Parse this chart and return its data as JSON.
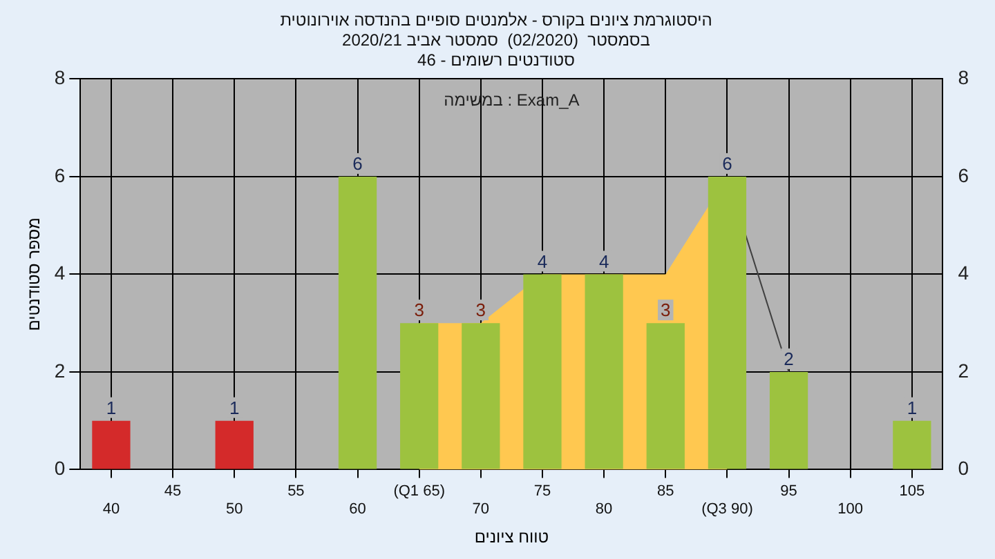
{
  "chart_data": {
    "type": "bar",
    "title": "היסטוגרמת ציונים בקורס - אלמנטים סופיים בהנדסה אוירונוטית",
    "subtitle": "בסמסטר  (02/2020)  סמסטר אביב 2020/21\nסטודנטים רשומים - 46",
    "xlabel": "טווח ציונים",
    "ylabel": "מספר סטודנטים",
    "annotations": [
      "במשימה : Exam_A"
    ],
    "categories": [
      "40",
      "45",
      "50",
      "55",
      "60",
      "(Q1 65)",
      "70",
      "75",
      "80",
      "85",
      "(Q3 90)",
      "95",
      "100",
      "105"
    ],
    "series": [
      {
        "type": "area",
        "color": "#ffc850",
        "values": [
          null,
          null,
          null,
          null,
          null,
          3,
          3,
          4,
          4,
          4,
          6,
          null,
          null,
          null
        ]
      },
      {
        "type": "line",
        "color": "#404040",
        "values": [
          null,
          null,
          null,
          null,
          null,
          null,
          null,
          null,
          null,
          null,
          6,
          2,
          null,
          null
        ]
      },
      {
        "colors": [
          "#d42a2a",
          "#9dc23f",
          "#d42a2a",
          "#9dc23f",
          "#9dc23f",
          "#9dc23f",
          "#9dc23f",
          "#9dc23f",
          "#9dc23f",
          "#9dc23f",
          "#9dc23f",
          "#9dc23f",
          "#9dc23f",
          "#9dc23f"
        ],
        "values": [
          1,
          0,
          1,
          0,
          6,
          3,
          3,
          4,
          4,
          3,
          6,
          2,
          0,
          1
        ],
        "value_labels": [
          "1",
          null,
          "1",
          null,
          "6",
          "3",
          "3",
          "4",
          "4",
          "3",
          "6",
          "2",
          null,
          "1"
        ]
      }
    ],
    "ylim": [
      0,
      8
    ],
    "yticks": [
      0,
      2,
      4,
      6,
      8
    ],
    "y2lim": [
      0,
      8
    ],
    "y2ticks": [
      0,
      2,
      4,
      6,
      8
    ],
    "grid": true,
    "marker": "none"
  }
}
